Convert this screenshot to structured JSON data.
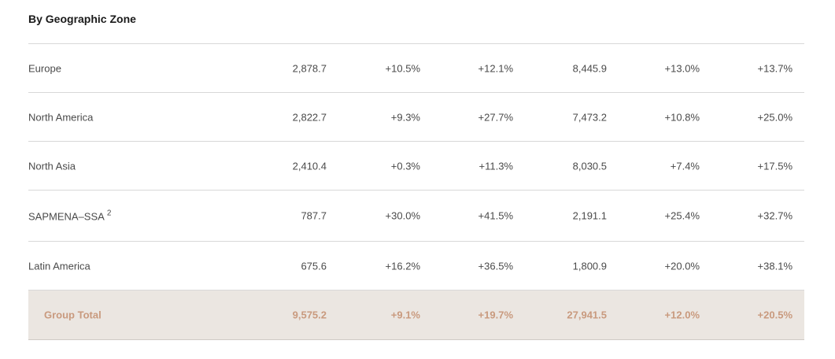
{
  "section": {
    "title": "By Geographic Zone"
  },
  "rows": [
    {
      "zone": "Europe",
      "footnote": "",
      "values": [
        "2,878.7",
        "+10.5%",
        "+12.1%",
        "8,445.9",
        "+13.0%",
        "+13.7%"
      ]
    },
    {
      "zone": "North America",
      "footnote": "",
      "values": [
        "2,822.7",
        "+9.3%",
        "+27.7%",
        "7,473.2",
        "+10.8%",
        "+25.0%"
      ]
    },
    {
      "zone": "North Asia",
      "footnote": "",
      "values": [
        "2,410.4",
        "+0.3%",
        "+11.3%",
        "8,030.5",
        "+7.4%",
        "+17.5%"
      ]
    },
    {
      "zone": "SAPMENA–SSA",
      "footnote": "2",
      "values": [
        "787.7",
        "+30.0%",
        "+41.5%",
        "2,191.1",
        "+25.4%",
        "+32.7%"
      ]
    },
    {
      "zone": "Latin America",
      "footnote": "",
      "values": [
        "675.6",
        "+16.2%",
        "+36.5%",
        "1,800.9",
        "+20.0%",
        "+38.1%"
      ]
    }
  ],
  "total": {
    "zone": "Group Total",
    "values": [
      "9,575.2",
      "+9.1%",
      "+19.7%",
      "27,941.5",
      "+12.0%",
      "+20.5%"
    ]
  },
  "colors": {
    "total_background": "#ebe6e1",
    "total_text": "#c99a7e",
    "divider": "#d8d8d8"
  }
}
